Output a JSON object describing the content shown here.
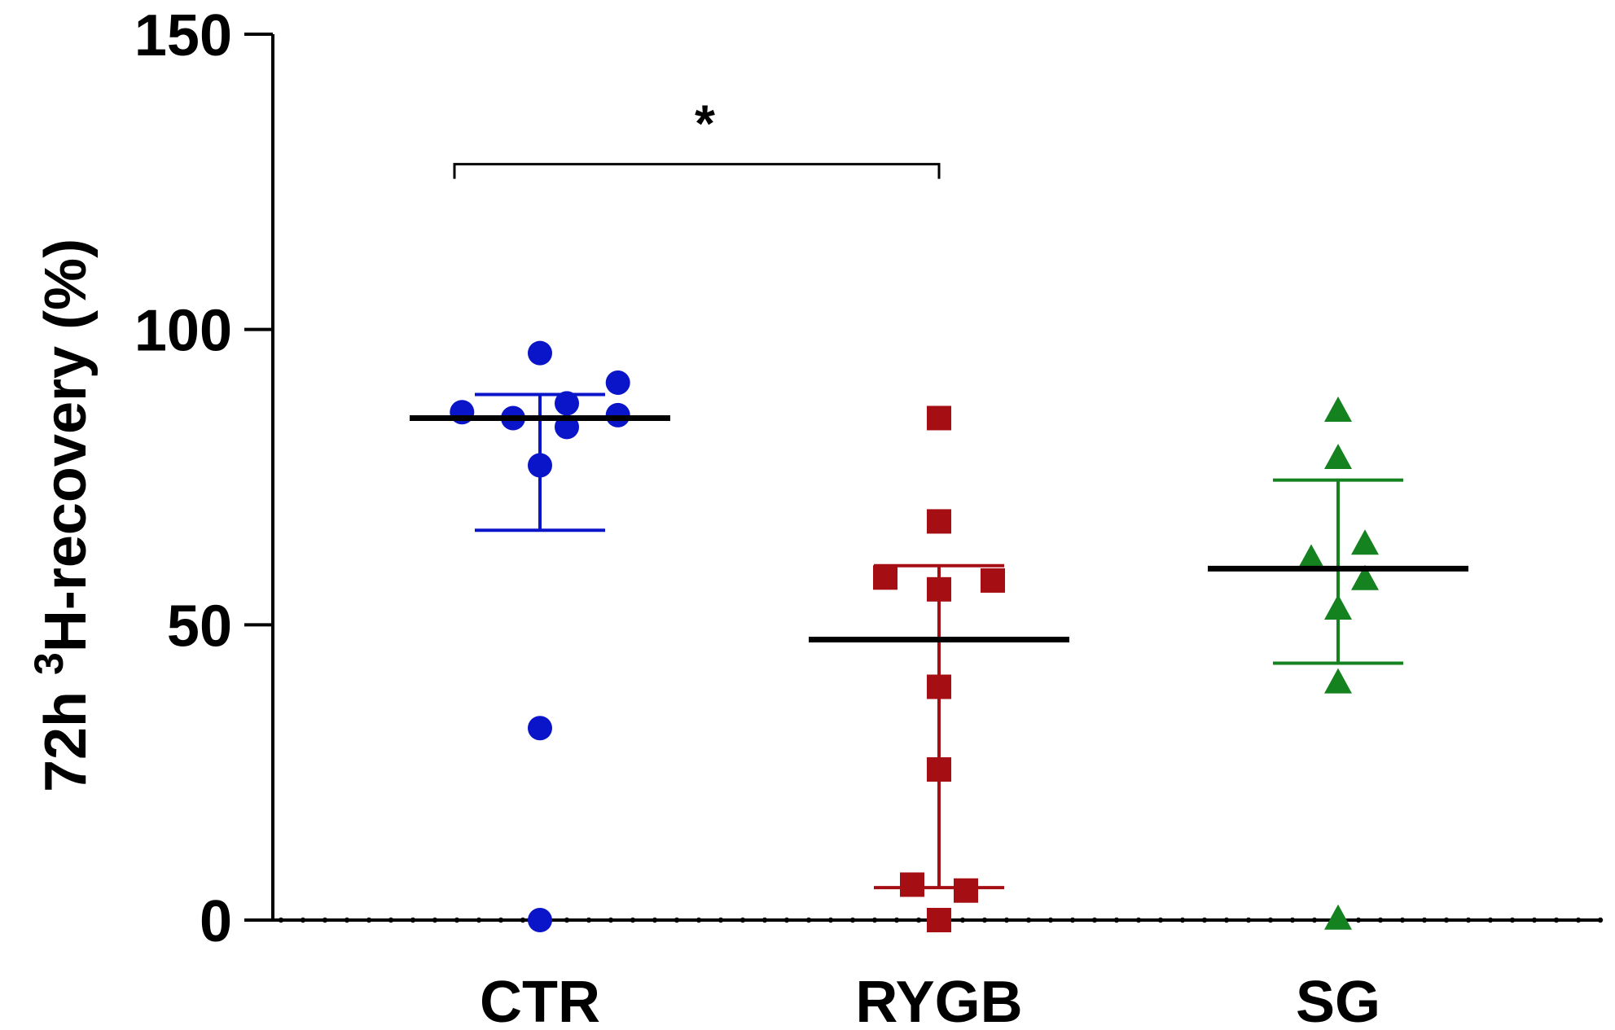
{
  "chart_data": {
    "type": "scatter",
    "title": "",
    "xlabel": "",
    "ylabel": {
      "prefix": "72h ",
      "superscript": "3",
      "suffix": "H-recovery (%)"
    },
    "ylim": [
      0,
      150
    ],
    "yticks": [
      {
        "value": 0,
        "label": "0"
      },
      {
        "value": 50,
        "label": "50"
      },
      {
        "value": 100,
        "label": "100"
      },
      {
        "value": 150,
        "label": "150"
      }
    ],
    "categories": [
      "CTR",
      "RYGB",
      "SG"
    ],
    "series": [
      {
        "name": "CTR",
        "marker": "circle",
        "color": "#0a14c8",
        "points": [
          {
            "dx": 0.0,
            "y": 96
          },
          {
            "dx": 0.1,
            "y": 87.5
          },
          {
            "dx": 0.29,
            "y": 91
          },
          {
            "dx": -0.29,
            "y": 86
          },
          {
            "dx": -0.1,
            "y": 85
          },
          {
            "dx": 0.1,
            "y": 83.5
          },
          {
            "dx": 0.29,
            "y": 85.5
          },
          {
            "dx": 0.0,
            "y": 77
          },
          {
            "dx": 0.0,
            "y": 32.5
          },
          {
            "dx": 0.0,
            "y": 0
          }
        ],
        "mean": 85,
        "err_low": 66,
        "err_high": 89
      },
      {
        "name": "RYGB",
        "marker": "square",
        "color": "#a50f14",
        "points": [
          {
            "dx": 0.0,
            "y": 85
          },
          {
            "dx": 0.0,
            "y": 67.5
          },
          {
            "dx": -0.2,
            "y": 58
          },
          {
            "dx": 0.2,
            "y": 57.5
          },
          {
            "dx": 0.0,
            "y": 56
          },
          {
            "dx": 0.0,
            "y": 39.5
          },
          {
            "dx": 0.0,
            "y": 25.5
          },
          {
            "dx": -0.1,
            "y": 6
          },
          {
            "dx": 0.1,
            "y": 5
          },
          {
            "dx": 0.0,
            "y": 0
          }
        ],
        "mean": 47.5,
        "err_low": 5.5,
        "err_high": 60
      },
      {
        "name": "SG",
        "marker": "triangle",
        "color": "#14821e",
        "points": [
          {
            "dx": 0.0,
            "y": 86
          },
          {
            "dx": 0.0,
            "y": 78
          },
          {
            "dx": 0.1,
            "y": 63.5
          },
          {
            "dx": -0.1,
            "y": 61
          },
          {
            "dx": 0.1,
            "y": 57.5
          },
          {
            "dx": 0.0,
            "y": 52.5
          },
          {
            "dx": 0.0,
            "y": 40
          },
          {
            "dx": 0.0,
            "y": 0
          }
        ],
        "mean": 59.5,
        "err_low": 43.5,
        "err_high": 74.5
      }
    ],
    "annotations": [
      {
        "type": "significance",
        "from": "CTR",
        "to": "RYGB",
        "y": 128,
        "text": "*"
      }
    ],
    "reference_line": {
      "y": 0,
      "style": "dotted"
    }
  }
}
